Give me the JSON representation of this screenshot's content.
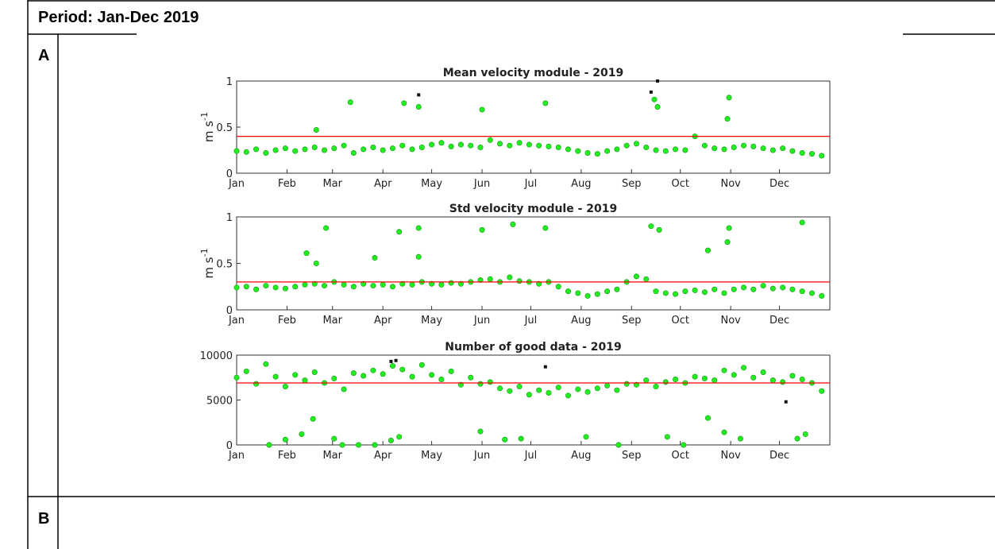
{
  "header": {
    "title": "Period: Jan-Dec 2019"
  },
  "rows": [
    {
      "label": "A"
    },
    {
      "label": "B"
    }
  ],
  "chart_data": [
    {
      "type": "scatter",
      "title": "Mean velocity module - 2019",
      "ylabel": {
        "base": "m s",
        "sup": "-1"
      },
      "xlim": [
        0,
        365
      ],
      "xticks": [
        {
          "value": 0,
          "label": "Jan"
        },
        {
          "value": 31,
          "label": "Feb"
        },
        {
          "value": 59,
          "label": "Mar"
        },
        {
          "value": 90,
          "label": "Apr"
        },
        {
          "value": 120,
          "label": "May"
        },
        {
          "value": 151,
          "label": "Jun"
        },
        {
          "value": 181,
          "label": "Jul"
        },
        {
          "value": 212,
          "label": "Aug"
        },
        {
          "value": 243,
          "label": "Sep"
        },
        {
          "value": 273,
          "label": "Oct"
        },
        {
          "value": 304,
          "label": "Nov"
        },
        {
          "value": 334,
          "label": "Dec"
        }
      ],
      "ylim": [
        0,
        1
      ],
      "yticks": [
        0,
        0.5,
        1
      ],
      "threshold": 0.4,
      "threshold_color": "#ff0000",
      "series": [
        {
          "color": "#22ee22",
          "x": [
            0,
            6,
            12,
            18,
            24,
            30,
            36,
            42,
            48,
            54,
            60,
            66,
            72,
            78,
            84,
            90,
            96,
            102,
            108,
            114,
            120,
            126,
            132,
            138,
            144,
            150,
            156,
            162,
            168,
            174,
            180,
            186,
            192,
            198,
            204,
            210,
            216,
            222,
            228,
            234,
            240,
            246,
            252,
            258,
            264,
            270,
            276,
            282,
            288,
            294,
            300,
            306,
            312,
            318,
            324,
            330,
            336,
            342,
            348,
            354,
            360,
            49,
            70,
            103,
            112,
            151,
            190,
            257,
            259,
            302,
            303
          ],
          "values": [
            0.24,
            0.23,
            0.26,
            0.22,
            0.25,
            0.27,
            0.24,
            0.26,
            0.28,
            0.25,
            0.27,
            0.3,
            0.22,
            0.26,
            0.28,
            0.25,
            0.27,
            0.3,
            0.26,
            0.28,
            0.31,
            0.33,
            0.29,
            0.31,
            0.3,
            0.28,
            0.36,
            0.32,
            0.3,
            0.33,
            0.31,
            0.3,
            0.29,
            0.28,
            0.26,
            0.24,
            0.22,
            0.21,
            0.24,
            0.26,
            0.3,
            0.32,
            0.28,
            0.25,
            0.24,
            0.26,
            0.25,
            0.4,
            0.3,
            0.27,
            0.26,
            0.28,
            0.3,
            0.29,
            0.27,
            0.25,
            0.27,
            0.24,
            0.22,
            0.21,
            0.19,
            0.47,
            0.77,
            0.76,
            0.72,
            0.69,
            0.76,
            0.8,
            0.72,
            0.59,
            0.82
          ]
        },
        {
          "color": "#111111",
          "x": [
            112,
            255,
            259
          ],
          "values": [
            0.85,
            0.88,
            1.0
          ]
        }
      ]
    },
    {
      "type": "scatter",
      "title": "Std velocity module - 2019",
      "ylabel": {
        "base": "m s",
        "sup": "-1"
      },
      "xlim": [
        0,
        365
      ],
      "xticks": [
        {
          "value": 0,
          "label": "Jan"
        },
        {
          "value": 31,
          "label": "Feb"
        },
        {
          "value": 59,
          "label": "Mar"
        },
        {
          "value": 90,
          "label": "Apr"
        },
        {
          "value": 120,
          "label": "May"
        },
        {
          "value": 151,
          "label": "Jun"
        },
        {
          "value": 181,
          "label": "Jul"
        },
        {
          "value": 212,
          "label": "Aug"
        },
        {
          "value": 243,
          "label": "Sep"
        },
        {
          "value": 273,
          "label": "Oct"
        },
        {
          "value": 304,
          "label": "Nov"
        },
        {
          "value": 334,
          "label": "Dec"
        }
      ],
      "ylim": [
        0,
        1
      ],
      "yticks": [
        0,
        0.5,
        1
      ],
      "threshold": 0.3,
      "threshold_color": "#ff0000",
      "series": [
        {
          "color": "#22ee22",
          "x": [
            0,
            6,
            12,
            18,
            24,
            30,
            36,
            42,
            48,
            54,
            60,
            66,
            72,
            78,
            84,
            90,
            96,
            102,
            108,
            114,
            120,
            126,
            132,
            138,
            144,
            150,
            156,
            162,
            168,
            174,
            180,
            186,
            192,
            198,
            204,
            210,
            216,
            222,
            228,
            234,
            240,
            246,
            252,
            258,
            264,
            270,
            276,
            282,
            288,
            294,
            300,
            306,
            312,
            318,
            324,
            330,
            336,
            342,
            348,
            354,
            360,
            43,
            49,
            55,
            85,
            100,
            112,
            112,
            151,
            170,
            190,
            255,
            260,
            290,
            302,
            303,
            348
          ],
          "values": [
            0.24,
            0.25,
            0.22,
            0.26,
            0.24,
            0.23,
            0.25,
            0.27,
            0.28,
            0.26,
            0.3,
            0.27,
            0.25,
            0.28,
            0.26,
            0.27,
            0.25,
            0.28,
            0.27,
            0.3,
            0.28,
            0.27,
            0.29,
            0.28,
            0.3,
            0.32,
            0.33,
            0.3,
            0.35,
            0.31,
            0.3,
            0.28,
            0.3,
            0.25,
            0.2,
            0.18,
            0.15,
            0.17,
            0.2,
            0.22,
            0.3,
            0.36,
            0.33,
            0.2,
            0.18,
            0.17,
            0.2,
            0.21,
            0.19,
            0.22,
            0.18,
            0.22,
            0.24,
            0.22,
            0.26,
            0.23,
            0.24,
            0.22,
            0.2,
            0.18,
            0.15,
            0.61,
            0.5,
            0.88,
            0.56,
            0.84,
            0.88,
            0.57,
            0.86,
            0.92,
            0.88,
            0.9,
            0.86,
            0.64,
            0.73,
            0.88,
            0.94
          ]
        }
      ]
    },
    {
      "type": "scatter",
      "title": "Number of good data - 2019",
      "xlim": [
        0,
        365
      ],
      "xticks": [
        {
          "value": 0,
          "label": "Jan"
        },
        {
          "value": 31,
          "label": "Feb"
        },
        {
          "value": 59,
          "label": "Mar"
        },
        {
          "value": 90,
          "label": "Apr"
        },
        {
          "value": 120,
          "label": "May"
        },
        {
          "value": 151,
          "label": "Jun"
        },
        {
          "value": 181,
          "label": "Jul"
        },
        {
          "value": 212,
          "label": "Aug"
        },
        {
          "value": 243,
          "label": "Sep"
        },
        {
          "value": 273,
          "label": "Oct"
        },
        {
          "value": 304,
          "label": "Nov"
        },
        {
          "value": 334,
          "label": "Dec"
        }
      ],
      "ylim": [
        0,
        10000
      ],
      "yticks": [
        0,
        5000,
        10000
      ],
      "threshold": 6900,
      "threshold_color": "#ff0000",
      "series": [
        {
          "color": "#22ee22",
          "x": [
            0,
            6,
            12,
            18,
            24,
            30,
            36,
            42,
            48,
            54,
            60,
            66,
            72,
            78,
            84,
            90,
            96,
            102,
            108,
            114,
            120,
            126,
            132,
            138,
            144,
            150,
            156,
            162,
            168,
            174,
            180,
            186,
            192,
            198,
            204,
            210,
            216,
            222,
            228,
            234,
            240,
            246,
            252,
            258,
            264,
            270,
            276,
            282,
            288,
            294,
            300,
            306,
            312,
            318,
            324,
            330,
            336,
            342,
            348,
            354,
            360,
            20,
            30,
            40,
            47,
            60,
            65,
            75,
            85,
            95,
            100,
            150,
            165,
            175,
            215,
            235,
            265,
            275,
            290,
            300,
            310,
            345,
            350
          ],
          "values": [
            7500,
            8200,
            6800,
            9000,
            7600,
            6500,
            7800,
            7200,
            8100,
            6900,
            7400,
            6200,
            8000,
            7700,
            8300,
            7900,
            8800,
            8400,
            7600,
            8900,
            7800,
            7300,
            8200,
            6700,
            7500,
            6800,
            7000,
            6300,
            6000,
            6500,
            5600,
            6100,
            5800,
            6400,
            5500,
            6200,
            5900,
            6300,
            6600,
            6100,
            6800,
            6700,
            7200,
            6500,
            7000,
            7300,
            6900,
            7600,
            7400,
            7200,
            8300,
            7800,
            8600,
            7500,
            8100,
            7200,
            7000,
            7700,
            7300,
            6900,
            6000,
            0,
            600,
            1200,
            2900,
            700,
            0,
            0,
            0,
            500,
            900,
            1500,
            600,
            700,
            900,
            0,
            900,
            0,
            3000,
            1400,
            700,
            700,
            1200
          ]
        },
        {
          "color": "#111111",
          "x": [
            95,
            98,
            190,
            338
          ],
          "values": [
            9300,
            9400,
            8700,
            4800
          ]
        }
      ]
    }
  ]
}
